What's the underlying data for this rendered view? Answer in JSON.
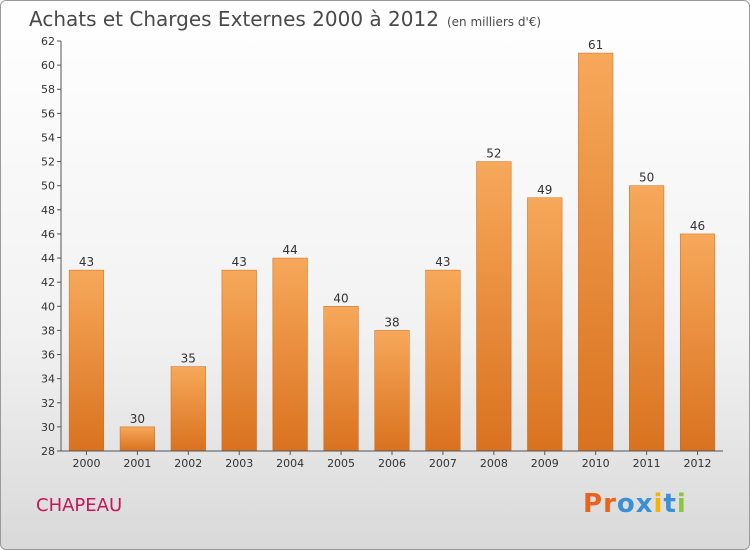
{
  "title": "Achats et Charges Externes 2000 à 2012",
  "subtitle": "(en milliers d'€)",
  "commune": "CHAPEAU",
  "logo": {
    "letters": [
      "P",
      "r",
      "o",
      "x",
      "i",
      "t",
      "i"
    ],
    "colors": [
      "#e8641e",
      "#e8641e",
      "#3a8fd6",
      "#3a8fd6",
      "#f4b400",
      "#3a8fd6",
      "#8cc63f"
    ]
  },
  "colors": {
    "bar_top": "#f7a85a",
    "bar_bottom": "#d9721f",
    "axis": "#555555",
    "grid": "#e6e6e6",
    "commune": "#c2185b"
  },
  "chart_data": {
    "type": "bar",
    "categories": [
      "2000",
      "2001",
      "2002",
      "2003",
      "2004",
      "2005",
      "2006",
      "2007",
      "2008",
      "2009",
      "2010",
      "2011",
      "2012"
    ],
    "values": [
      43,
      30,
      35,
      43,
      44,
      40,
      38,
      43,
      52,
      49,
      61,
      50,
      46
    ],
    "ylim": [
      28,
      62
    ],
    "yticks": [
      28,
      30,
      32,
      34,
      36,
      38,
      40,
      42,
      44,
      46,
      48,
      50,
      52,
      54,
      56,
      58,
      60,
      62
    ],
    "grid": false,
    "data_labels": true
  }
}
